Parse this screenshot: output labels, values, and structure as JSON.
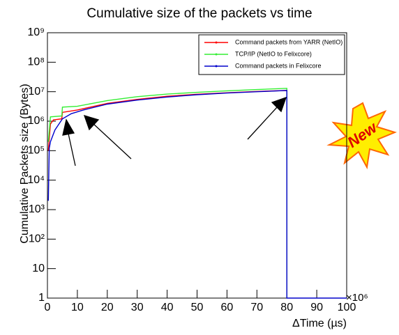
{
  "chart_data": {
    "type": "line",
    "title": "Cumulative size of the packets vs time",
    "x_label": "ΔTime (µs)",
    "y_label": "Cumulative Packets size (Bytes)",
    "x_multiplier": "×10⁶",
    "annotation": "New",
    "log_y": true,
    "legend": "top-right",
    "xlim": [
      0,
      100
    ],
    "xticks": [
      0,
      10,
      20,
      30,
      40,
      50,
      60,
      70,
      80,
      90,
      100
    ],
    "ylim": [
      1,
      1000000000
    ],
    "yticks": [
      1,
      10,
      {
        "value": 100,
        "label": "10²"
      },
      {
        "value": 1000,
        "label": "10³"
      },
      {
        "value": 10000,
        "label": "10⁴"
      },
      {
        "value": 100000,
        "label": "10⁵"
      },
      {
        "value": 1000000,
        "label": "10⁶"
      },
      {
        "value": 10000000,
        "label": "10⁷"
      },
      {
        "value": 100000000,
        "label": "10⁸"
      },
      {
        "value": 1000000000,
        "label": "10⁹"
      }
    ],
    "series": [
      {
        "name": "Command packets from YARR (NetIO)",
        "color": "#ff0000",
        "x": [
          0.3,
          1,
          2,
          4.8,
          5,
          10,
          20,
          30,
          40,
          50,
          60,
          70,
          80,
          80
        ],
        "values": [
          100000,
          800000,
          1100000,
          1200000,
          2000000,
          2400000,
          4000000,
          5500000,
          7000000,
          8200000,
          9200000,
          10200000,
          11000000,
          1
        ]
      },
      {
        "name": "TCP/IP (NetIO to Felixcore)",
        "color": "#33ee33",
        "x": [
          0.3,
          1,
          4.8,
          5,
          10,
          20,
          30,
          40,
          50,
          60,
          70,
          80,
          80
        ],
        "values": [
          200000,
          1400000,
          1500000,
          3000000,
          3200000,
          5000000,
          6800000,
          8300000,
          9500000,
          10700000,
          11800000,
          13000000,
          1
        ]
      },
      {
        "name": "Command packets in Felixcore",
        "color": "#0000cc",
        "x": [
          0.3,
          0.6,
          1,
          2.5,
          5,
          8,
          12,
          20,
          30,
          40,
          50,
          60,
          70,
          80,
          80,
          100
        ],
        "values": [
          2000,
          120000,
          200000,
          500000,
          1200000,
          1800000,
          2400000,
          3800000,
          5200000,
          6600000,
          7900000,
          9000000,
          10000000,
          11000000,
          1,
          1
        ]
      }
    ]
  }
}
